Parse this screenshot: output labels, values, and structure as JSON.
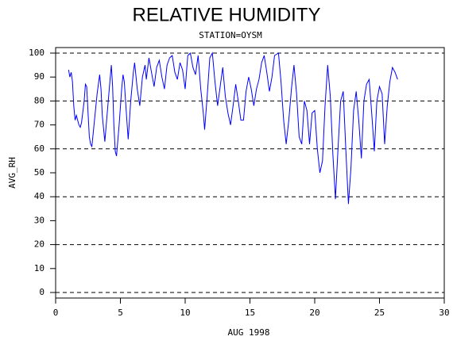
{
  "chart_data": {
    "type": "line",
    "title": "RELATIVE HUMIDITY",
    "subtitle": "STATION=OYSM",
    "x_label": "AUG 1998",
    "y_label": "AVG_RH",
    "x": [
      1.0,
      1.1,
      1.2,
      1.3,
      1.4,
      1.5,
      1.6,
      1.7,
      1.8,
      1.9,
      2.0,
      2.2,
      2.3,
      2.4,
      2.5,
      2.6,
      2.7,
      2.8,
      3.0,
      3.2,
      3.4,
      3.5,
      3.6,
      3.8,
      4.0,
      4.2,
      4.3,
      4.4,
      4.5,
      4.6,
      4.7,
      4.9,
      5.1,
      5.2,
      5.3,
      5.5,
      5.6,
      5.8,
      6.0,
      6.1,
      6.3,
      6.5,
      6.7,
      6.9,
      7.0,
      7.2,
      7.4,
      7.6,
      7.8,
      8.0,
      8.2,
      8.4,
      8.6,
      8.8,
      9.0,
      9.2,
      9.4,
      9.6,
      9.8,
      10.0,
      10.2,
      10.4,
      10.6,
      10.8,
      11.0,
      11.2,
      11.4,
      11.5,
      11.7,
      11.9,
      12.1,
      12.3,
      12.5,
      12.7,
      12.9,
      13.1,
      13.3,
      13.5,
      13.7,
      13.9,
      14.1,
      14.3,
      14.5,
      14.7,
      14.9,
      15.1,
      15.3,
      15.5,
      15.7,
      15.9,
      16.1,
      16.3,
      16.5,
      16.7,
      16.9,
      17.2,
      17.4,
      17.6,
      17.8,
      18.0,
      18.2,
      18.4,
      18.6,
      18.8,
      19.0,
      19.2,
      19.4,
      19.6,
      19.8,
      20.0,
      20.2,
      20.4,
      20.6,
      20.8,
      21.0,
      21.2,
      21.4,
      21.6,
      21.8,
      22.0,
      22.2,
      22.4,
      22.6,
      22.8,
      23.0,
      23.2,
      23.4,
      23.6,
      23.8,
      24.0,
      24.2,
      24.4,
      24.6,
      24.8,
      25.0,
      25.2,
      25.4,
      25.6,
      25.8,
      26.0,
      26.2,
      26.4
    ],
    "series": [
      {
        "name": "AVG_RH",
        "color": "#0000ff",
        "values": [
          93,
          90,
          92,
          88,
          78,
          72,
          74,
          72,
          70,
          69,
          71,
          80,
          87,
          86,
          75,
          65,
          62,
          61,
          72,
          83,
          91,
          85,
          74,
          63,
          76,
          89,
          95,
          86,
          70,
          59,
          57,
          70,
          85,
          91,
          88,
          72,
          64,
          80,
          92,
          96,
          85,
          78,
          90,
          95,
          89,
          98,
          92,
          86,
          94,
          97,
          90,
          85,
          95,
          98,
          99,
          92,
          89,
          96,
          93,
          85,
          99,
          100,
          94,
          91,
          99,
          85,
          75,
          68,
          82,
          98,
          100,
          88,
          78,
          86,
          94,
          82,
          75,
          70,
          78,
          87,
          80,
          72,
          72,
          84,
          90,
          85,
          78,
          85,
          89,
          96,
          99,
          92,
          84,
          90,
          99,
          100,
          88,
          72,
          62,
          72,
          85,
          95,
          83,
          65,
          62,
          80,
          76,
          62,
          75,
          76,
          60,
          50,
          55,
          78,
          95,
          82,
          58,
          39,
          60,
          80,
          84,
          60,
          37,
          52,
          76,
          84,
          72,
          56,
          80,
          87,
          89,
          75,
          59,
          80,
          86,
          83,
          62,
          78,
          88,
          94,
          92,
          89
        ]
      }
    ],
    "xlim": [
      0,
      30
    ],
    "xticks": [
      0,
      5,
      10,
      15,
      20,
      25,
      30
    ],
    "ylim": [
      0,
      100
    ],
    "yticks": [
      0,
      10,
      20,
      30,
      40,
      50,
      60,
      70,
      80,
      90,
      100
    ],
    "grid": true
  }
}
